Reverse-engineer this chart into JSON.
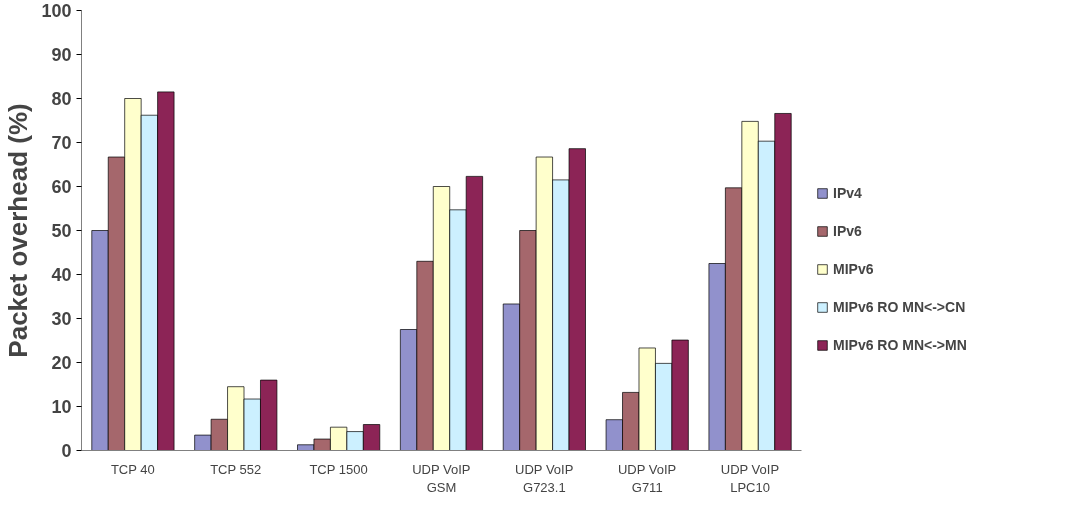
{
  "chart_data": {
    "type": "bar",
    "ylabel": "Packet overhead (%)",
    "categories": [
      "TCP 40",
      "TCP 552",
      "TCP 1500",
      "UDP VoIP\nGSM",
      "UDP VoIP\nG723.1",
      "UDP VoIP\nG711",
      "UDP VoIP\nLPC10"
    ],
    "series": [
      {
        "name": "IPv4",
        "color": "#9191cc",
        "values": [
          50,
          3.5,
          1.3,
          27.5,
          33.3,
          7,
          42.5
        ]
      },
      {
        "name": "IPv6",
        "color": "#a5676c",
        "values": [
          66.7,
          7.1,
          2.6,
          43,
          50,
          13.2,
          59.7
        ]
      },
      {
        "name": "MIPv6",
        "color": "#ffffcc",
        "values": [
          80,
          14.5,
          5.3,
          60,
          66.7,
          23.3,
          74.8
        ]
      },
      {
        "name": "MIPv6 RO MN<->CN",
        "color": "#ccf0ff",
        "values": [
          76.2,
          11.7,
          4.3,
          54.7,
          61.5,
          19.8,
          70.3
        ]
      },
      {
        "name": "MIPv6 RO MN<->MN",
        "color": "#8c2456",
        "values": [
          81.5,
          16,
          5.9,
          62.3,
          68.6,
          25.1,
          76.6
        ]
      }
    ],
    "ylim": [
      0,
      100
    ],
    "yticks": [
      0,
      10,
      20,
      30,
      40,
      50,
      60,
      70,
      80,
      90,
      100
    ],
    "grid": false,
    "legend": "right"
  }
}
